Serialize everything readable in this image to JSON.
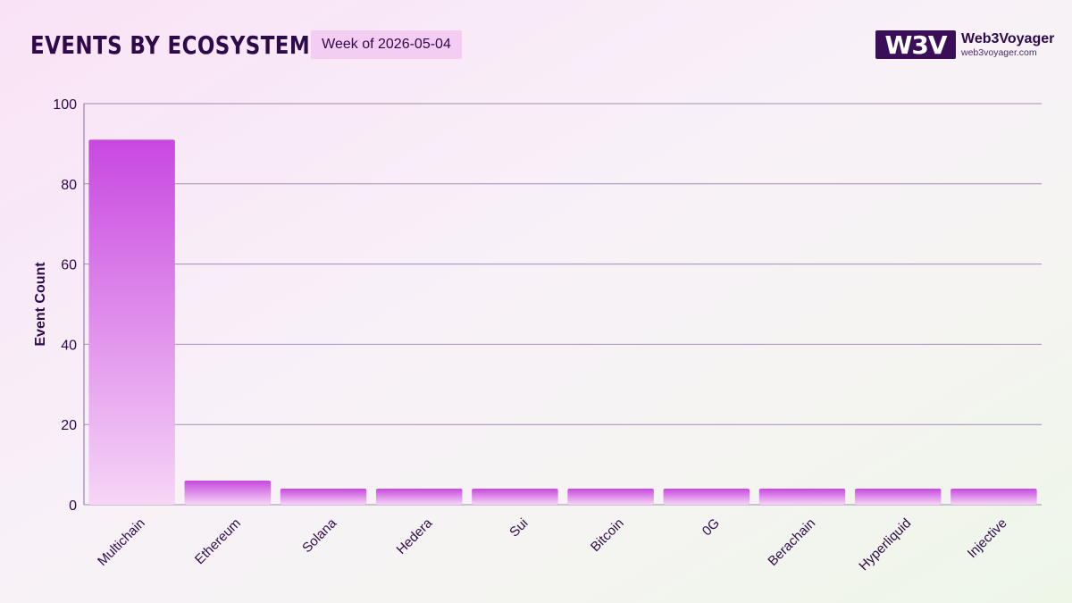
{
  "header": {
    "title": "Events by Ecosystem",
    "week_label": "Week of 2026-05-04"
  },
  "logo": {
    "mark": "W3V",
    "name": "Web3Voyager",
    "url": "web3voyager.com"
  },
  "colors": {
    "bar_top": "#c848e0",
    "bar_bottom": "#f6d6f6",
    "grid": "#8a6aa0",
    "axis_text": "#2e0a4a"
  },
  "chart_data": {
    "type": "bar",
    "title": "Events by Ecosystem",
    "ylabel": "Event Count",
    "xlabel": "",
    "ylim": [
      0,
      100
    ],
    "yticks": [
      0,
      20,
      40,
      60,
      80,
      100
    ],
    "grid": true,
    "categories": [
      "Multichain",
      "Ethereum",
      "Solana",
      "Hedera",
      "Sui",
      "Bitcoin",
      "0G",
      "Berachain",
      "Hyperliquid",
      "Injective"
    ],
    "values": [
      91,
      6,
      4,
      4,
      4,
      4,
      4,
      4,
      4,
      4
    ]
  }
}
